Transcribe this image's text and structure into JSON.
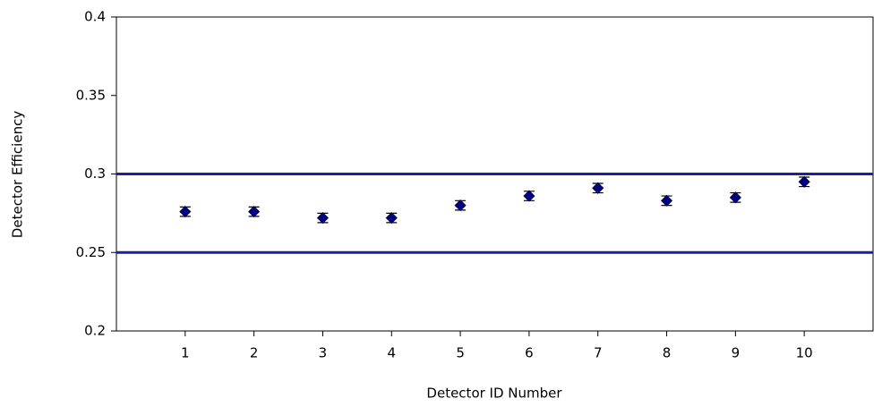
{
  "chart_data": {
    "type": "scatter",
    "x_label": "Detector ID Number",
    "y_label": "Detector Efficiency",
    "x": [
      1,
      2,
      3,
      4,
      5,
      6,
      7,
      8,
      9,
      10
    ],
    "values": [
      0.276,
      0.276,
      0.272,
      0.272,
      0.28,
      0.286,
      0.291,
      0.283,
      0.285,
      0.295
    ],
    "errors": [
      0.003,
      0.003,
      0.003,
      0.003,
      0.003,
      0.003,
      0.003,
      0.003,
      0.003,
      0.003
    ],
    "color": "#000080",
    "xlim": [
      0,
      11
    ],
    "xticks": [
      1,
      2,
      3,
      4,
      5,
      6,
      7,
      8,
      9,
      10
    ],
    "ylim": [
      0.2,
      0.4
    ],
    "yticks": [
      0.2,
      0.25,
      0.3,
      0.35,
      0.4
    ],
    "reference_lines": [
      0.25,
      0.3
    ],
    "reference_color": "#1f1f99",
    "grid": false
  }
}
